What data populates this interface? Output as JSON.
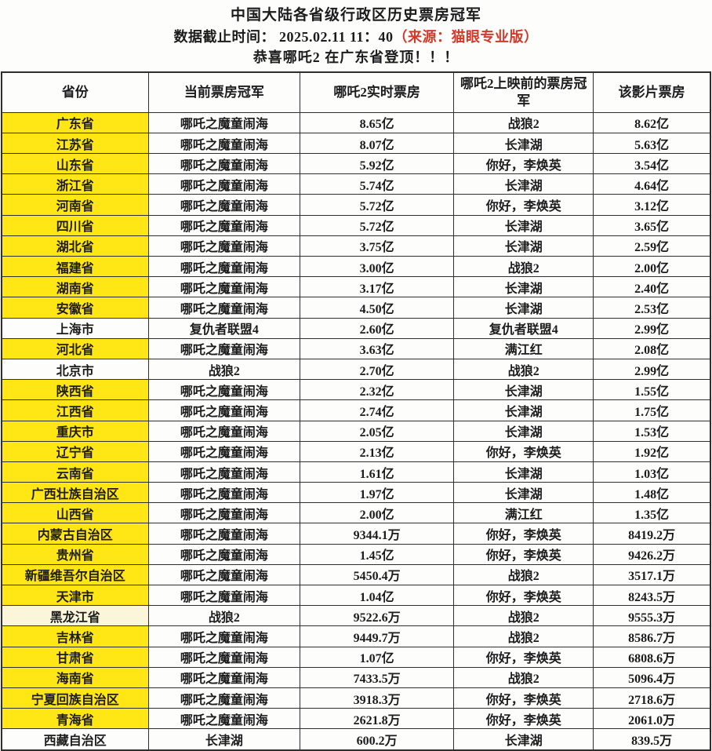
{
  "title": "中国大陆各省级行政区历史票房冠军",
  "subtitle": {
    "text": "数据截止时间：  2025.02.11 11：40",
    "source": "（来源：猫眼专业版）"
  },
  "announcement": "恭喜哪吒2 在广东省登顶！！！",
  "colors": {
    "highlight_yellow": "#ffe614",
    "pale_yellow": "#fbf5da",
    "accent_red": "#cf3a2b",
    "border": "#2f2f2f"
  },
  "table": {
    "headers": [
      "省份",
      "当前票房冠军",
      "哪吒2实时票房",
      "哪吒2上映前的票房冠军",
      "该影片票房"
    ],
    "rows": [
      {
        "province": "广东省",
        "current_champion": "哪吒之魔童闹海",
        "nezha2_box": "8.65亿",
        "pre_champion": "战狼2",
        "pre_box": "8.62亿",
        "bg": "yellow"
      },
      {
        "province": "江苏省",
        "current_champion": "哪吒之魔童闹海",
        "nezha2_box": "8.07亿",
        "pre_champion": "长津湖",
        "pre_box": "5.63亿",
        "bg": "yellow"
      },
      {
        "province": "山东省",
        "current_champion": "哪吒之魔童闹海",
        "nezha2_box": "5.92亿",
        "pre_champion": "你好，李焕英",
        "pre_box": "3.54亿",
        "bg": "yellow"
      },
      {
        "province": "浙江省",
        "current_champion": "哪吒之魔童闹海",
        "nezha2_box": "5.74亿",
        "pre_champion": "长津湖",
        "pre_box": "4.64亿",
        "bg": "yellow"
      },
      {
        "province": "河南省",
        "current_champion": "哪吒之魔童闹海",
        "nezha2_box": "5.72亿",
        "pre_champion": "你好，李焕英",
        "pre_box": "3.12亿",
        "bg": "yellow"
      },
      {
        "province": "四川省",
        "current_champion": "哪吒之魔童闹海",
        "nezha2_box": "5.72亿",
        "pre_champion": "长津湖",
        "pre_box": "3.65亿",
        "bg": "yellow"
      },
      {
        "province": "湖北省",
        "current_champion": "哪吒之魔童闹海",
        "nezha2_box": "3.75亿",
        "pre_champion": "长津湖",
        "pre_box": "2.59亿",
        "bg": "yellow"
      },
      {
        "province": "福建省",
        "current_champion": "哪吒之魔童闹海",
        "nezha2_box": "3.00亿",
        "pre_champion": "战狼2",
        "pre_box": "2.00亿",
        "bg": "yellow"
      },
      {
        "province": "湖南省",
        "current_champion": "哪吒之魔童闹海",
        "nezha2_box": "3.17亿",
        "pre_champion": "长津湖",
        "pre_box": "2.40亿",
        "bg": "yellow"
      },
      {
        "province": "安徽省",
        "current_champion": "哪吒之魔童闹海",
        "nezha2_box": "4.50亿",
        "pre_champion": "长津湖",
        "pre_box": "2.53亿",
        "bg": "yellow"
      },
      {
        "province": "上海市",
        "current_champion": "复仇者联盟4",
        "nezha2_box": "2.60亿",
        "pre_champion": "复仇者联盟4",
        "pre_box": "2.99亿",
        "bg": "white"
      },
      {
        "province": "河北省",
        "current_champion": "哪吒之魔童闹海",
        "nezha2_box": "3.63亿",
        "pre_champion": "满江红",
        "pre_box": "2.08亿",
        "bg": "yellow"
      },
      {
        "province": "北京市",
        "current_champion": "战狼2",
        "nezha2_box": "2.70亿",
        "pre_champion": "战狼2",
        "pre_box": "2.99亿",
        "bg": "white"
      },
      {
        "province": "陕西省",
        "current_champion": "哪吒之魔童闹海",
        "nezha2_box": "2.32亿",
        "pre_champion": "长津湖",
        "pre_box": "1.55亿",
        "bg": "yellow"
      },
      {
        "province": "江西省",
        "current_champion": "哪吒之魔童闹海",
        "nezha2_box": "2.74亿",
        "pre_champion": "长津湖",
        "pre_box": "1.75亿",
        "bg": "yellow"
      },
      {
        "province": "重庆市",
        "current_champion": "哪吒之魔童闹海",
        "nezha2_box": "2.05亿",
        "pre_champion": "长津湖",
        "pre_box": "1.53亿",
        "bg": "yellow"
      },
      {
        "province": "辽宁省",
        "current_champion": "哪吒之魔童闹海",
        "nezha2_box": "2.13亿",
        "pre_champion": "你好，李焕英",
        "pre_box": "1.92亿",
        "bg": "yellow"
      },
      {
        "province": "云南省",
        "current_champion": "哪吒之魔童闹海",
        "nezha2_box": "1.61亿",
        "pre_champion": "长津湖",
        "pre_box": "1.03亿",
        "bg": "yellow"
      },
      {
        "province": "广西壮族自治区",
        "current_champion": "哪吒之魔童闹海",
        "nezha2_box": "1.97亿",
        "pre_champion": "长津湖",
        "pre_box": "1.48亿",
        "bg": "yellow"
      },
      {
        "province": "山西省",
        "current_champion": "哪吒之魔童闹海",
        "nezha2_box": "2.00亿",
        "pre_champion": "满江红",
        "pre_box": "1.35亿",
        "bg": "yellow"
      },
      {
        "province": "内蒙古自治区",
        "current_champion": "哪吒之魔童闹海",
        "nezha2_box": "9344.1万",
        "pre_champion": "你好，李焕英",
        "pre_box": "8419.2万",
        "bg": "yellow"
      },
      {
        "province": "贵州省",
        "current_champion": "哪吒之魔童闹海",
        "nezha2_box": "1.45亿",
        "pre_champion": "你好，李焕英",
        "pre_box": "9426.2万",
        "bg": "yellow"
      },
      {
        "province": "新疆维吾尔自治区",
        "current_champion": "哪吒之魔童闹海",
        "nezha2_box": "5450.4万",
        "pre_champion": "战狼2",
        "pre_box": "3517.1万",
        "bg": "yellow"
      },
      {
        "province": "天津市",
        "current_champion": "哪吒之魔童闹海",
        "nezha2_box": "1.04亿",
        "pre_champion": "你好，李焕英",
        "pre_box": "8243.5万",
        "bg": "yellow"
      },
      {
        "province": "黑龙江省",
        "current_champion": "战狼2",
        "nezha2_box": "9522.6万",
        "pre_champion": "战狼2",
        "pre_box": "9555.3万",
        "bg": "pale"
      },
      {
        "province": "吉林省",
        "current_champion": "哪吒之魔童闹海",
        "nezha2_box": "9449.7万",
        "pre_champion": "战狼2",
        "pre_box": "8586.7万",
        "bg": "yellow"
      },
      {
        "province": "甘肃省",
        "current_champion": "哪吒之魔童闹海",
        "nezha2_box": "1.07亿",
        "pre_champion": "你好，李焕英",
        "pre_box": "6808.6万",
        "bg": "yellow"
      },
      {
        "province": "海南省",
        "current_champion": "哪吒之魔童闹海",
        "nezha2_box": "7433.5万",
        "pre_champion": "战狼2",
        "pre_box": "5096.4万",
        "bg": "yellow"
      },
      {
        "province": "宁夏回族自治区",
        "current_champion": "哪吒之魔童闹海",
        "nezha2_box": "3918.3万",
        "pre_champion": "你好，李焕英",
        "pre_box": "2718.6万",
        "bg": "yellow"
      },
      {
        "province": "青海省",
        "current_champion": "哪吒之魔童闹海",
        "nezha2_box": "2621.8万",
        "pre_champion": "你好，李焕英",
        "pre_box": "2061.0万",
        "bg": "yellow"
      },
      {
        "province": "西藏自治区",
        "current_champion": "长津湖",
        "nezha2_box": "600.2万",
        "pre_champion": "长津湖",
        "pre_box": "839.5万",
        "bg": "white"
      }
    ]
  }
}
